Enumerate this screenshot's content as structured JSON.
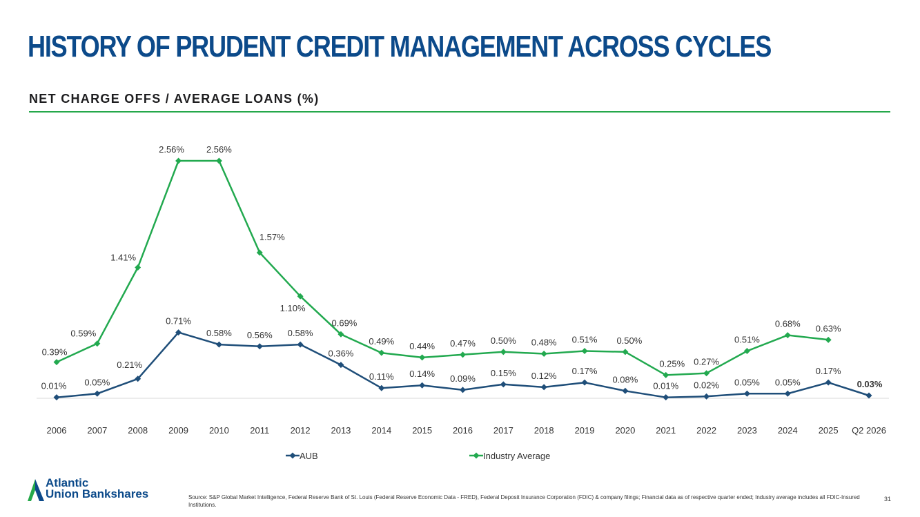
{
  "page": {
    "title": "HISTORY OF PRUDENT CREDIT MANAGEMENT ACROSS CYCLES",
    "subtitle": "NET CHARGE OFFS / AVERAGE LOANS (%)",
    "source": "Source: S&P Global Market Intelligence, Federal Reserve Bank of St. Louis (Federal Reserve Economic Data - FRED), Federal Deposit Insurance Corporation (FDIC) & company filings; Financial data as of respective quarter ended; Industry average includes all FDIC-Insured Institutions.",
    "page_number": "31",
    "logo_line1": "Atlantic",
    "logo_line2": "Union Bankshares"
  },
  "colors": {
    "title": "#0c4a8a",
    "rule": "#25a84a",
    "aub": "#1f4e79",
    "industry": "#22a94f"
  },
  "chart_data": {
    "type": "line",
    "categories": [
      "2006",
      "2007",
      "2008",
      "2009",
      "2010",
      "2011",
      "2012",
      "2013",
      "2014",
      "2015",
      "2016",
      "2017",
      "2018",
      "2019",
      "2020",
      "2021",
      "2022",
      "2023",
      "2024",
      "2025",
      "Q2 2026"
    ],
    "series": [
      {
        "name": "AUB",
        "color": "#1f4e79",
        "marker": "diamond",
        "values": [
          0.01,
          0.05,
          0.21,
          0.71,
          0.58,
          0.56,
          0.58,
          0.36,
          0.11,
          0.14,
          0.09,
          0.15,
          0.12,
          0.17,
          0.08,
          0.01,
          0.02,
          0.05,
          0.05,
          0.17,
          0.03
        ],
        "labels": [
          "0.01%",
          "0.05%",
          "0.21%",
          "0.71%",
          "0.58%",
          "0.56%",
          "0.58%",
          "0.36%",
          "0.11%",
          "0.14%",
          "0.09%",
          "0.15%",
          "0.12%",
          "0.17%",
          "0.08%",
          "0.01%",
          "0.02%",
          "0.05%",
          "0.05%",
          "0.17%",
          "0.03%"
        ]
      },
      {
        "name": "Industry Average",
        "color": "#22a94f",
        "marker": "diamond",
        "values": [
          0.39,
          0.59,
          1.41,
          2.56,
          2.56,
          1.57,
          1.1,
          0.69,
          0.49,
          0.44,
          0.47,
          0.5,
          0.48,
          0.51,
          0.5,
          0.25,
          0.27,
          0.51,
          0.68,
          0.63,
          null
        ],
        "labels": [
          "0.39%",
          "0.59%",
          "1.41%",
          "2.56%",
          "2.56%",
          "1.57%",
          "1.10%",
          "0.69%",
          "0.49%",
          "0.44%",
          "0.47%",
          "0.50%",
          "0.48%",
          "0.51%",
          "0.50%",
          "0.25%",
          "0.27%",
          "0.51%",
          "0.68%",
          "0.63%",
          ""
        ]
      }
    ],
    "ylim": [
      0,
      2.56
    ],
    "grid": false,
    "legend": "bottom-center"
  }
}
